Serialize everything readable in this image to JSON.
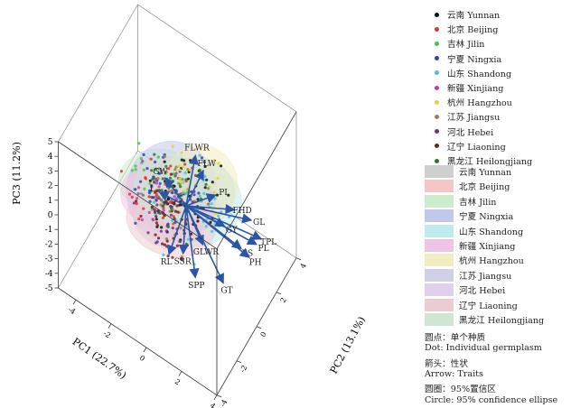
{
  "chart_data": {
    "type": "scatter",
    "subtype": "3d-pca-biplot",
    "xlabel": "PC1 (22.7%)",
    "ylabel": "PC2 (13.1%)",
    "zlabel": "PC3 (11.2%)",
    "xlim": [
      -5,
      4
    ],
    "ylim": [
      -4,
      4
    ],
    "zlim": [
      -5,
      5
    ],
    "x_ticks": [
      "-4",
      "-2",
      "0",
      "2",
      "4"
    ],
    "y_ticks": [
      "-4",
      "-2",
      "0",
      "2",
      "4"
    ],
    "z_ticks": [
      "-5",
      "-4",
      "-3",
      "-2",
      "-1",
      "0",
      "1",
      "2",
      "3",
      "4",
      "5"
    ],
    "groups": [
      {
        "name": "云南 Yunnan",
        "color": "#111111",
        "fill": "#cfcfcf",
        "center": [
          0.2,
          0.0,
          0.9
        ],
        "spread": [
          1.2,
          1.2,
          1.1
        ],
        "n": 60
      },
      {
        "name": "北京 Beijing",
        "color": "#e0303a",
        "fill": "#f4c6c6",
        "center": [
          -1.6,
          0.5,
          -0.6
        ],
        "spread": [
          1.0,
          1.0,
          0.9
        ],
        "n": 40
      },
      {
        "name": "吉林 Jilin",
        "color": "#4cc04c",
        "fill": "#cdeccd",
        "center": [
          -1.8,
          0.2,
          0.1
        ],
        "spread": [
          1.0,
          1.0,
          0.9
        ],
        "n": 30
      },
      {
        "name": "宁夏 Ningxia",
        "color": "#2c45b8",
        "fill": "#c2c8ec",
        "center": [
          -0.8,
          0.0,
          0.3
        ],
        "spread": [
          1.2,
          1.1,
          1.5
        ],
        "n": 40
      },
      {
        "name": "山东 Shandong",
        "color": "#44c6d4",
        "fill": "#bfeaf0",
        "center": [
          0.2,
          0.3,
          0.0
        ],
        "spread": [
          1.3,
          1.3,
          1.3
        ],
        "n": 40
      },
      {
        "name": "新疆 Xinjiang",
        "color": "#c43ca8",
        "fill": "#f0c4e6",
        "center": [
          -1.5,
          -0.5,
          0.2
        ],
        "spread": [
          0.9,
          0.9,
          0.9
        ],
        "n": 25
      },
      {
        "name": "杭州 Hangzhou",
        "color": "#e8d032",
        "fill": "#f2edc0",
        "center": [
          0.5,
          0.5,
          1.2
        ],
        "spread": [
          1.0,
          1.0,
          1.2
        ],
        "n": 25
      },
      {
        "name": "江苏 Jiangsu",
        "color": "#a67c3c",
        "fill": "#cfcfe8",
        "center": [
          -0.5,
          0.0,
          -0.2
        ],
        "spread": [
          1.0,
          1.0,
          1.0
        ],
        "n": 25
      },
      {
        "name": "河北 Hebei",
        "color": "#7b2a8c",
        "fill": "#ddd0e8",
        "center": [
          -0.6,
          -0.5,
          -0.5
        ],
        "spread": [
          1.0,
          1.0,
          1.0
        ],
        "n": 25
      },
      {
        "name": "辽宁 Liaoning",
        "color": "#7a1c1c",
        "fill": "#ecccd0",
        "center": [
          -0.4,
          -0.8,
          -0.5
        ],
        "spread": [
          1.2,
          1.0,
          1.0
        ],
        "n": 40
      },
      {
        "name": "黑龙江 Heilongjiang",
        "color": "#1e7a36",
        "fill": "#cfe6d2",
        "center": [
          -1.0,
          0.3,
          0.0
        ],
        "spread": [
          1.0,
          1.0,
          1.0
        ],
        "n": 30
      }
    ],
    "arrows": [
      {
        "label": "FLWR",
        "vector": [
          0.3,
          0.4,
          3.2
        ]
      },
      {
        "label": "FLW",
        "vector": [
          0.8,
          0.3,
          2.7
        ]
      },
      {
        "label": "PI",
        "vector": [
          1.5,
          0.3,
          1.6
        ]
      },
      {
        "label": "FHD",
        "vector": [
          2.5,
          0.4,
          1.3
        ]
      },
      {
        "label": "GL",
        "vector": [
          3.4,
          0.5,
          1.2
        ]
      },
      {
        "label": "TPL",
        "vector": [
          3.8,
          0.8,
          -0.1
        ]
      },
      {
        "label": "PL",
        "vector": [
          3.7,
          0.5,
          -0.2
        ]
      },
      {
        "label": "GY",
        "vector": [
          2.0,
          0.3,
          -0.1
        ]
      },
      {
        "label": "ES",
        "vector": [
          3.0,
          0.2,
          -0.7
        ]
      },
      {
        "label": "PH",
        "vector": [
          3.4,
          0.3,
          -1.1
        ]
      },
      {
        "label": "GT",
        "vector": [
          2.5,
          -0.7,
          -2.4
        ]
      },
      {
        "label": "GLWR",
        "vector": [
          1.0,
          -0.1,
          -1.7
        ]
      },
      {
        "label": "SPP",
        "vector": [
          1.2,
          -1.2,
          -2.5
        ]
      },
      {
        "label": "SSR",
        "vector": [
          0.0,
          -0.3,
          -2.9
        ]
      },
      {
        "label": "RL",
        "vector": [
          -0.8,
          -0.3,
          -3.6
        ]
      },
      {
        "label": "GW",
        "vector": [
          -1.3,
          0.2,
          0.6
        ]
      },
      {
        "label": "L",
        "vector": [
          -1.5,
          0.0,
          -0.3
        ]
      }
    ]
  },
  "notes": [
    "圆点：单个种质",
    "Dot: Individual germplasm",
    "箭头：性状",
    "Arrow: Traits",
    "圆圈：95%置信区",
    "Circle: 95% confidence ellipse"
  ]
}
